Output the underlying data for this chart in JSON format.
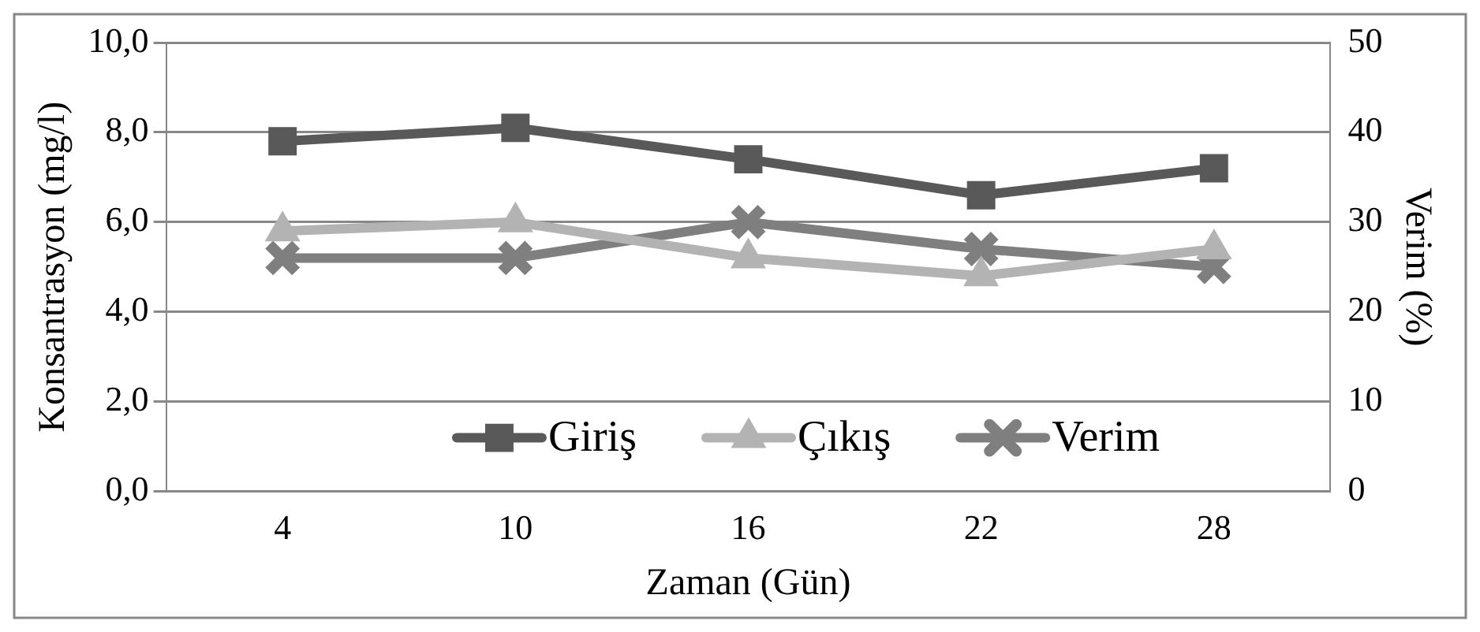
{
  "chart_data": {
    "type": "line",
    "xlabel": "Zaman (Gün)",
    "ylabel": "Konsantrasyon (mg/l)",
    "y2label": "Verim (%)",
    "categories": [
      "4",
      "10",
      "16",
      "22",
      "28"
    ],
    "series": [
      {
        "name": "Giriş",
        "color": "#595959",
        "marker": "square",
        "values": [
          7.8,
          8.1,
          7.4,
          6.6,
          7.2
        ]
      },
      {
        "name": "Çıkış",
        "color": "#b3b3b3",
        "marker": "triangle",
        "values": [
          5.8,
          6.0,
          5.2,
          4.8,
          5.4
        ]
      },
      {
        "name": "Verim",
        "color": "#7f7f7f",
        "marker": "cross",
        "axis": "y2",
        "values": [
          26,
          26,
          30,
          27,
          25
        ]
      }
    ],
    "ylim": [
      0,
      10
    ],
    "yticks": [
      {
        "value": 0,
        "label": "0,0"
      },
      {
        "value": 2,
        "label": "2,0"
      },
      {
        "value": 4,
        "label": "4,0"
      },
      {
        "value": 6,
        "label": "6,0"
      },
      {
        "value": 8,
        "label": "8,0"
      },
      {
        "value": 10,
        "label": "10,0"
      }
    ],
    "y2lim": [
      0,
      50
    ],
    "y2ticks": [
      0,
      10,
      20,
      30,
      40,
      50
    ],
    "grid": "y",
    "legend": "bottom"
  }
}
